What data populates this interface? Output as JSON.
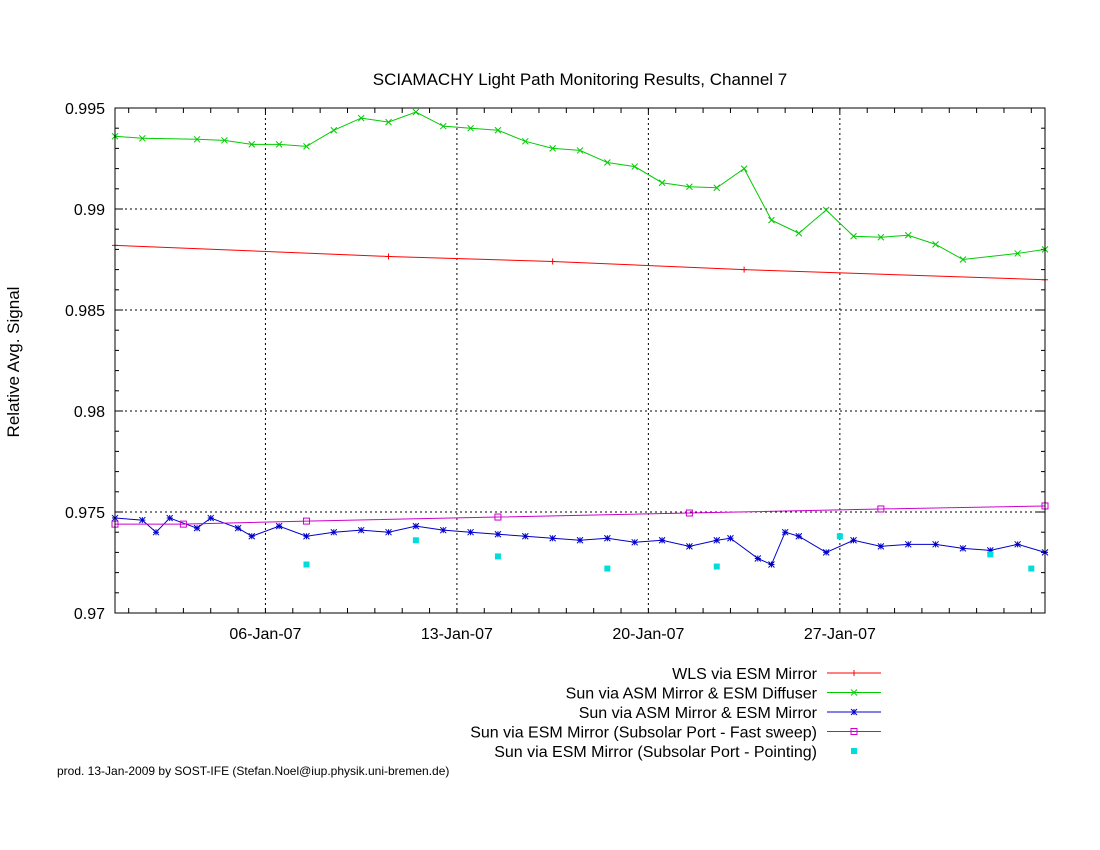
{
  "chart_data": {
    "type": "line",
    "title": "SCIAMACHY Light Path Monitoring Results, Channel 7",
    "xlabel": "",
    "ylabel": "Relative Avg. Signal",
    "xlim": [
      "2006-12-31T12:00",
      "2007-02-03T12:00"
    ],
    "ylim": [
      0.97,
      0.995
    ],
    "grid": true,
    "x_ticks": [
      {
        "label": "06-Jan-07",
        "date": "2007-01-06"
      },
      {
        "label": "13-Jan-07",
        "date": "2007-01-13"
      },
      {
        "label": "20-Jan-07",
        "date": "2007-01-20"
      },
      {
        "label": "27-Jan-07",
        "date": "2007-01-27"
      }
    ],
    "y_ticks": [
      {
        "label": "0.97",
        "value": 0.97
      },
      {
        "label": "0.975",
        "value": 0.975
      },
      {
        "label": "0.98",
        "value": 0.98
      },
      {
        "label": "0.985",
        "value": 0.985
      },
      {
        "label": "0.99",
        "value": 0.99
      },
      {
        "label": "0.995",
        "value": 0.995
      }
    ],
    "legend_position": "bottom",
    "series": [
      {
        "name": "WLS via ESM Mirror",
        "color": "#ff0000",
        "style": "line-plus",
        "points": [
          [
            "2006-12-31T12:00",
            0.9882
          ],
          [
            "2007-01-10T12:00",
            0.98765
          ],
          [
            "2007-01-16T12:00",
            0.9874
          ],
          [
            "2007-01-23T12:00",
            0.987
          ],
          [
            "2007-02-03T12:00",
            0.9865
          ]
        ]
      },
      {
        "name": "Sun via ASM Mirror & ESM Diffuser",
        "color": "#00cc00",
        "style": "line-x",
        "points": [
          [
            "2006-12-31T12:00",
            0.9936
          ],
          [
            "2007-01-01T12:00",
            0.9935
          ],
          [
            "2007-01-03T12:00",
            0.99345
          ],
          [
            "2007-01-04T12:00",
            0.9934
          ],
          [
            "2007-01-05T12:00",
            0.9932
          ],
          [
            "2007-01-06T12:00",
            0.9932
          ],
          [
            "2007-01-07T12:00",
            0.9931
          ],
          [
            "2007-01-08T12:00",
            0.9939
          ],
          [
            "2007-01-09T12:00",
            0.9945
          ],
          [
            "2007-01-10T12:00",
            0.9943
          ],
          [
            "2007-01-11T12:00",
            0.9948
          ],
          [
            "2007-01-12T12:00",
            0.9941
          ],
          [
            "2007-01-13T12:00",
            0.994
          ],
          [
            "2007-01-14T12:00",
            0.9939
          ],
          [
            "2007-01-15T12:00",
            0.99335
          ],
          [
            "2007-01-16T12:00",
            0.993
          ],
          [
            "2007-01-17T12:00",
            0.9929
          ],
          [
            "2007-01-18T12:00",
            0.9923
          ],
          [
            "2007-01-19T12:00",
            0.9921
          ],
          [
            "2007-01-20T12:00",
            0.9913
          ],
          [
            "2007-01-21T12:00",
            0.9911
          ],
          [
            "2007-01-22T12:00",
            0.99105
          ],
          [
            "2007-01-23T12:00",
            0.992
          ],
          [
            "2007-01-24T12:00",
            0.98945
          ],
          [
            "2007-01-25T12:00",
            0.9888
          ],
          [
            "2007-01-26T12:00",
            0.98995
          ],
          [
            "2007-01-27T12:00",
            0.98865
          ],
          [
            "2007-01-28T12:00",
            0.9886
          ],
          [
            "2007-01-29T12:00",
            0.9887
          ],
          [
            "2007-01-30T12:00",
            0.98825
          ],
          [
            "2007-01-31T12:00",
            0.9875
          ],
          [
            "2007-02-02T12:00",
            0.9878
          ],
          [
            "2007-02-03T12:00",
            0.988
          ]
        ]
      },
      {
        "name": "Sun via ASM Mirror & ESM Mirror",
        "color": "#0000cc",
        "style": "line-star",
        "points": [
          [
            "2006-12-31T12:00",
            0.9747
          ],
          [
            "2007-01-01T12:00",
            0.9746
          ],
          [
            "2007-01-02T00:00",
            0.974
          ],
          [
            "2007-01-02T12:00",
            0.9747
          ],
          [
            "2007-01-03T12:00",
            0.9742
          ],
          [
            "2007-01-04T00:00",
            0.9747
          ],
          [
            "2007-01-05T00:00",
            0.9742
          ],
          [
            "2007-01-05T12:00",
            0.9738
          ],
          [
            "2007-01-06T12:00",
            0.9743
          ],
          [
            "2007-01-07T12:00",
            0.9738
          ],
          [
            "2007-01-08T12:00",
            0.974
          ],
          [
            "2007-01-09T12:00",
            0.9741
          ],
          [
            "2007-01-10T12:00",
            0.974
          ],
          [
            "2007-01-11T12:00",
            0.9743
          ],
          [
            "2007-01-12T12:00",
            0.9741
          ],
          [
            "2007-01-13T12:00",
            0.974
          ],
          [
            "2007-01-14T12:00",
            0.9739
          ],
          [
            "2007-01-15T12:00",
            0.9738
          ],
          [
            "2007-01-16T12:00",
            0.9737
          ],
          [
            "2007-01-17T12:00",
            0.9736
          ],
          [
            "2007-01-18T12:00",
            0.9737
          ],
          [
            "2007-01-19T12:00",
            0.9735
          ],
          [
            "2007-01-20T12:00",
            0.9736
          ],
          [
            "2007-01-21T12:00",
            0.9733
          ],
          [
            "2007-01-22T12:00",
            0.9736
          ],
          [
            "2007-01-23T00:00",
            0.9737
          ],
          [
            "2007-01-24T00:00",
            0.9727
          ],
          [
            "2007-01-24T12:00",
            0.9724
          ],
          [
            "2007-01-25T00:00",
            0.974
          ],
          [
            "2007-01-25T12:00",
            0.9738
          ],
          [
            "2007-01-26T12:00",
            0.973
          ],
          [
            "2007-01-27T12:00",
            0.9736
          ],
          [
            "2007-01-28T12:00",
            0.9733
          ],
          [
            "2007-01-29T12:00",
            0.9734
          ],
          [
            "2007-01-30T12:00",
            0.9734
          ],
          [
            "2007-01-31T12:00",
            0.9732
          ],
          [
            "2007-02-01T12:00",
            0.9731
          ],
          [
            "2007-02-02T12:00",
            0.9734
          ],
          [
            "2007-02-03T12:00",
            0.973
          ]
        ]
      },
      {
        "name": "Sun via ESM Mirror (Subsolar Port - Fast sweep)",
        "color": "#cc00cc",
        "style": "line-square",
        "points": [
          [
            "2006-12-31T12:00",
            0.9744
          ],
          [
            "2007-01-03T00:00",
            0.9744
          ],
          [
            "2007-01-07T12:00",
            0.97455
          ],
          [
            "2007-01-14T12:00",
            0.97475
          ],
          [
            "2007-01-21T12:00",
            0.97495
          ],
          [
            "2007-01-28T12:00",
            0.97515
          ],
          [
            "2007-02-03T12:00",
            0.9753
          ]
        ]
      },
      {
        "name": "Sun via ESM Mirror (Subsolar Port - Pointing)",
        "color": "#00dddd",
        "style": "points-square",
        "points": [
          [
            "2007-01-07T12:00",
            0.9724
          ],
          [
            "2007-01-11T12:00",
            0.9736
          ],
          [
            "2007-01-14T12:00",
            0.9728
          ],
          [
            "2007-01-18T12:00",
            0.9722
          ],
          [
            "2007-01-22T12:00",
            0.9723
          ],
          [
            "2007-01-27T00:00",
            0.9738
          ],
          [
            "2007-02-01T12:00",
            0.9729
          ],
          [
            "2007-02-03T00:00",
            0.9722
          ]
        ]
      }
    ]
  },
  "footer": {
    "credit": "prod. 13-Jan-2009 by SOST-IFE (Stefan.Noel@iup.physik.uni-bremen.de)"
  }
}
